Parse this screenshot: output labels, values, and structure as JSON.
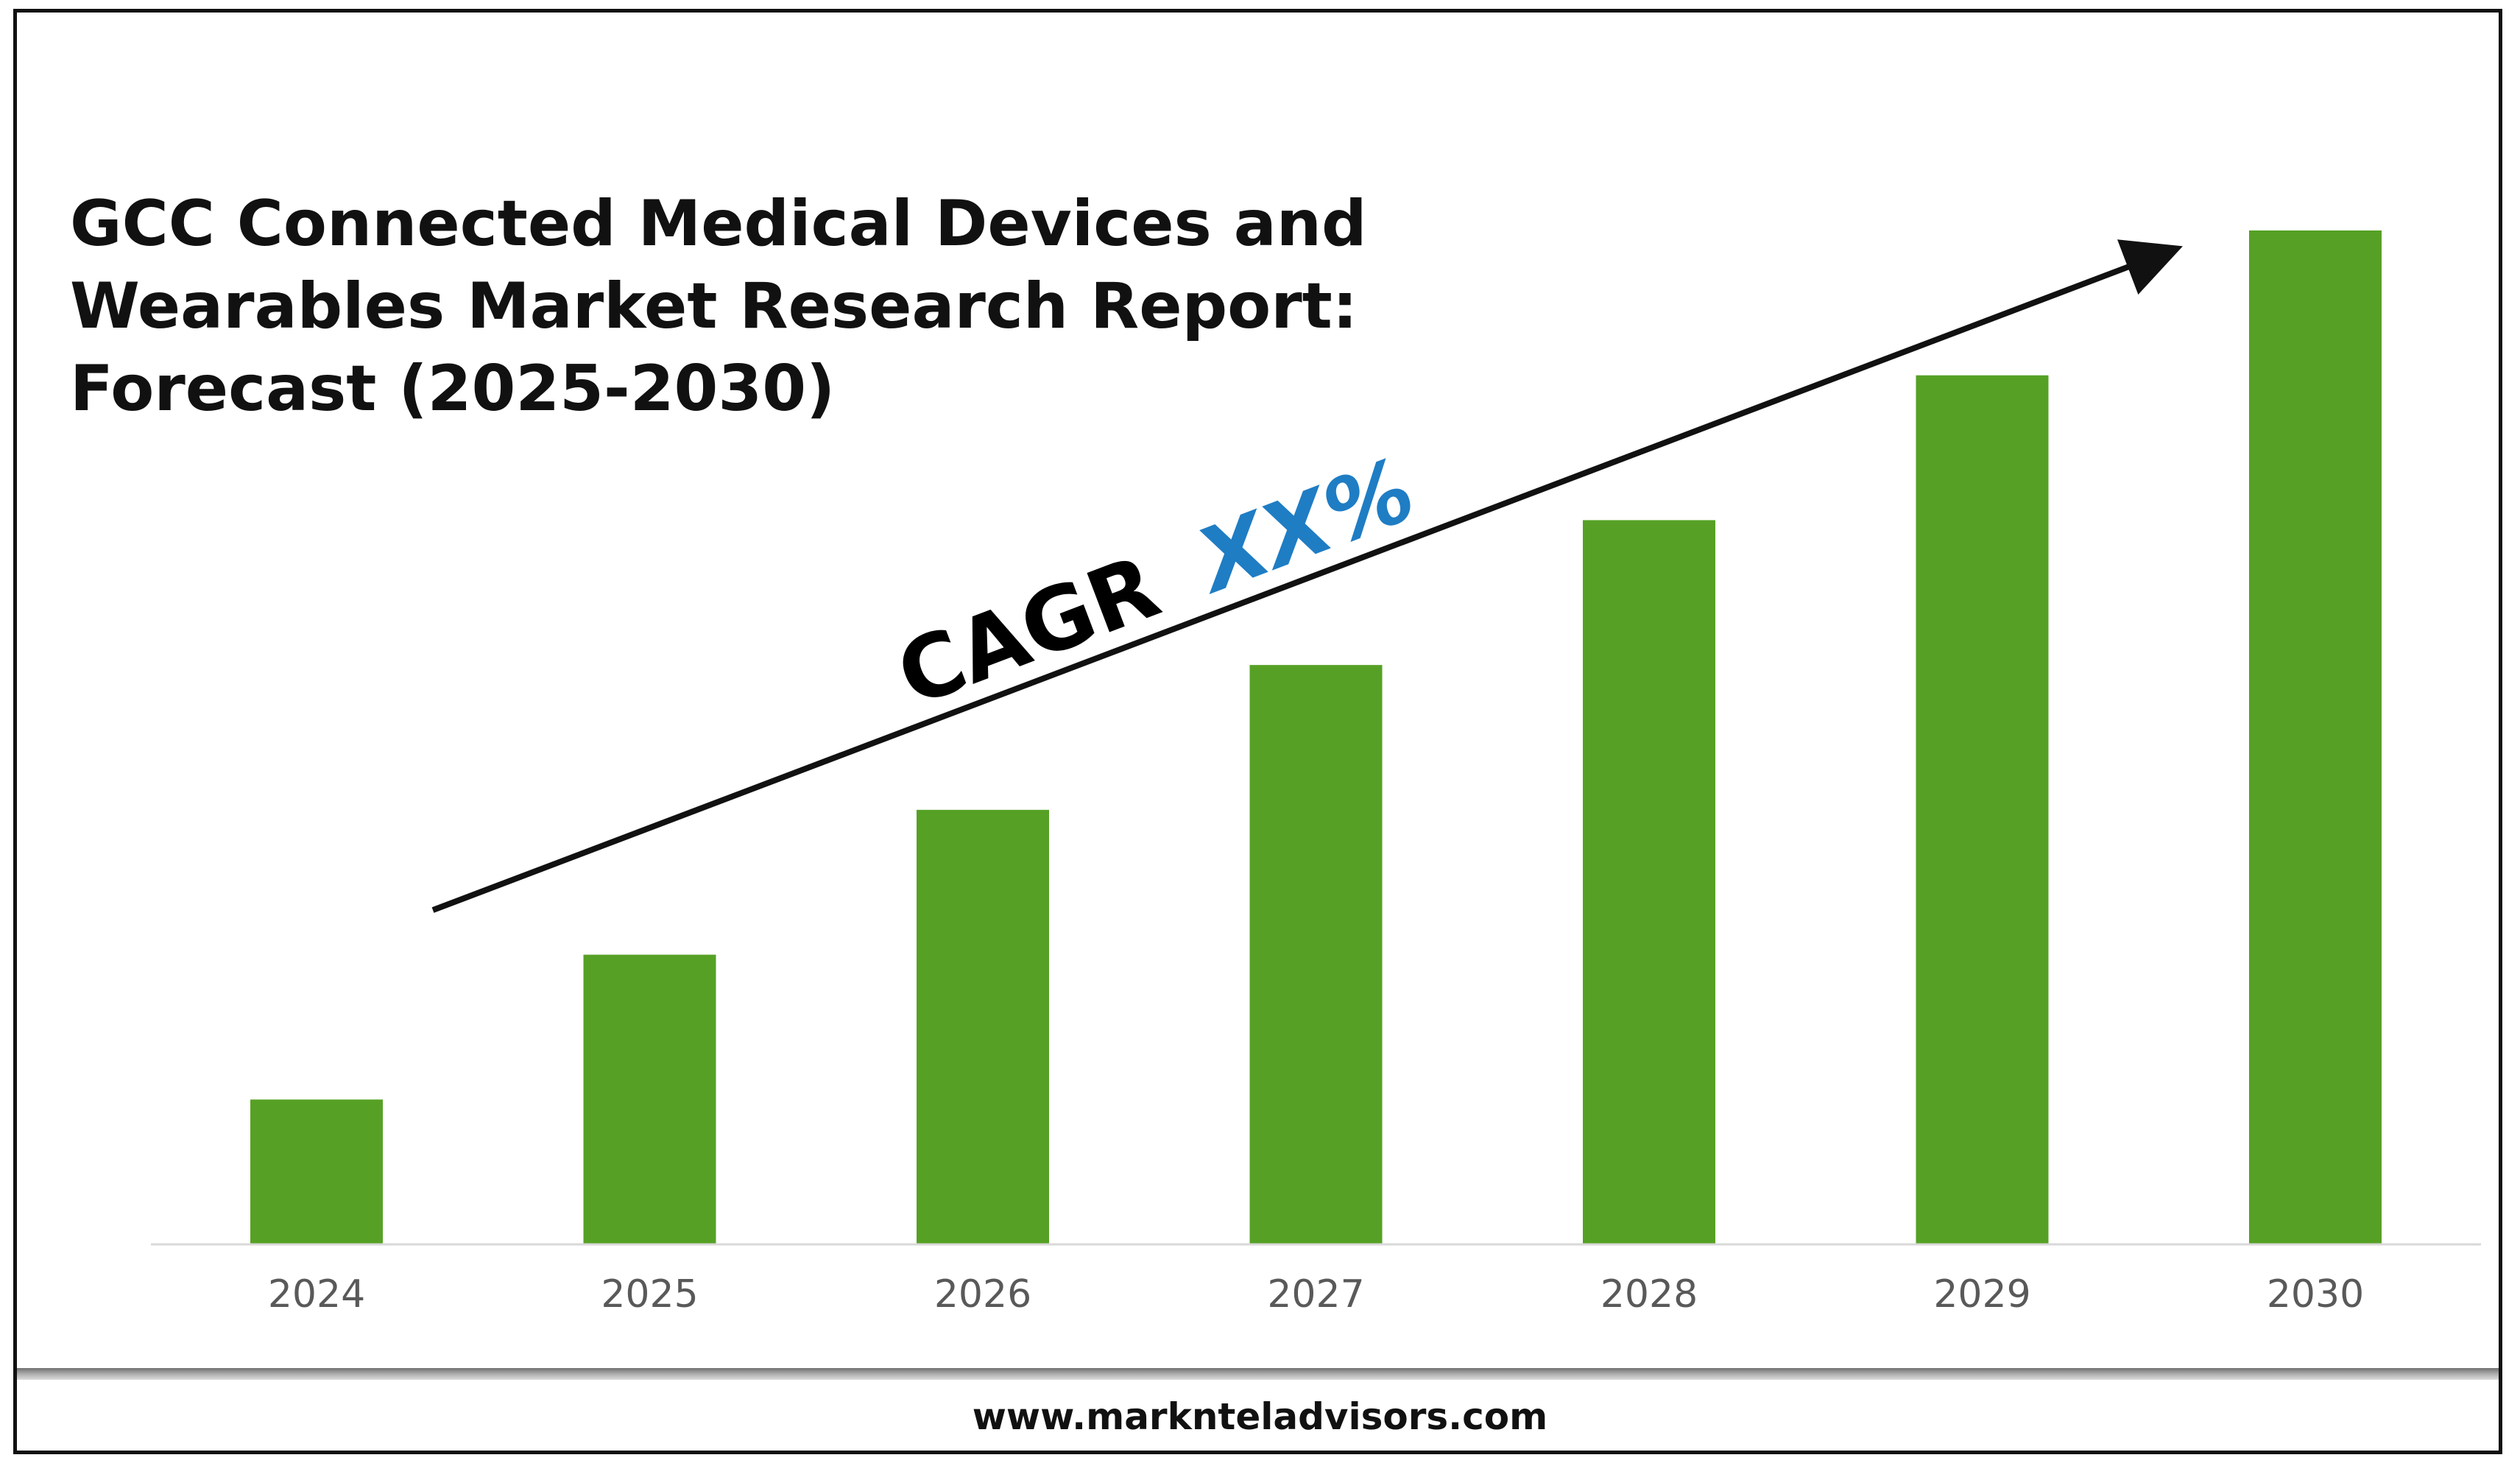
{
  "chart_data": {
    "type": "bar",
    "title_lines": [
      "GCC Connected Medical Devices and",
      "Wearables Market Research Report:",
      "Forecast (2025-2030)"
    ],
    "categories": [
      "2024",
      "2025",
      "2026",
      "2027",
      "2028",
      "2029",
      "2030"
    ],
    "values": [
      1,
      2,
      3,
      4,
      5,
      6,
      7
    ],
    "ylim": [
      0,
      7
    ],
    "y_axis_shown": false,
    "grid": false,
    "bar_color": "#56a125",
    "annotation": {
      "prefix": "CAGR",
      "value": "XX%",
      "prefix_color": "#000000",
      "value_color": "#1f7dc4"
    },
    "trend_arrow": true
  },
  "footer": {
    "url": "www.marknteladvisors.com"
  }
}
